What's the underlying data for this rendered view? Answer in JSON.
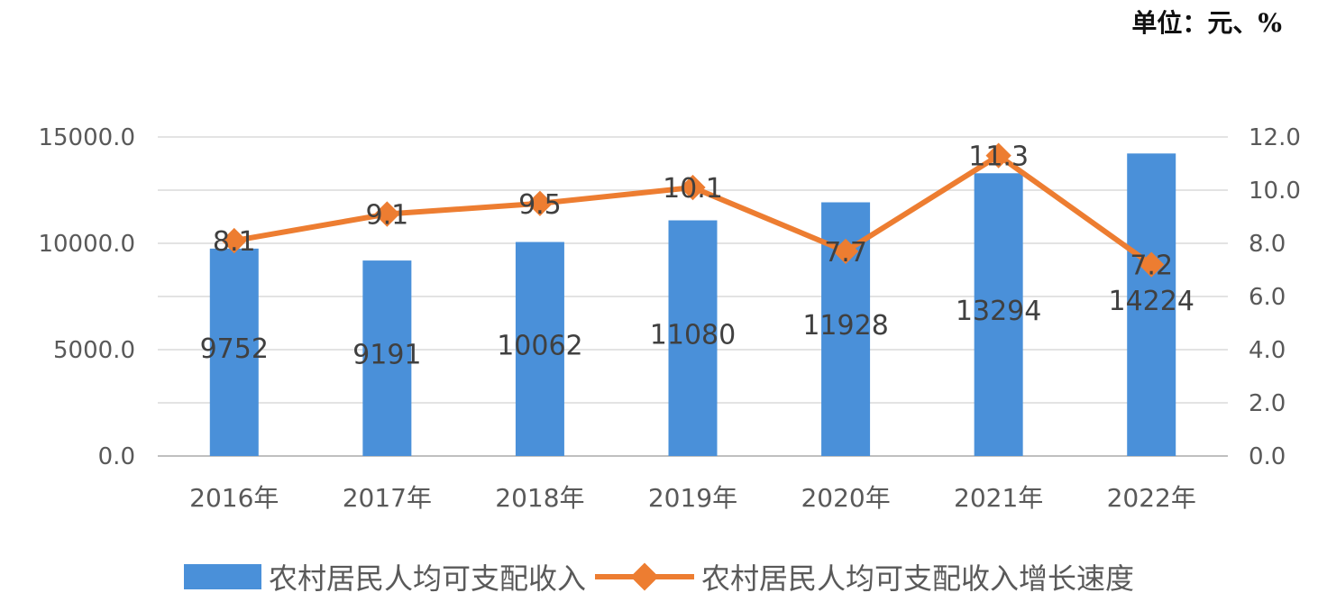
{
  "unit_label": "单位：元、%",
  "chart_data": {
    "type": "bar",
    "categories": [
      "2016年",
      "2017年",
      "2018年",
      "2019年",
      "2020年",
      "2021年",
      "2022年"
    ],
    "series": [
      {
        "name": "农村居民人均可支配收入",
        "type": "bar",
        "axis": "left",
        "values": [
          9752,
          9191,
          10062,
          11080,
          11928,
          13294,
          14224
        ],
        "labels": [
          "9752",
          "9191",
          "10062",
          "11080",
          "11928",
          "13294",
          "14224"
        ],
        "color": "#4a90d9"
      },
      {
        "name": "农村居民人均可支配收入增长速度",
        "type": "line",
        "axis": "right",
        "values": [
          8.1,
          9.1,
          9.5,
          10.1,
          7.7,
          11.3,
          7.2
        ],
        "labels": [
          "8.1",
          "9.1",
          "9.5",
          "10.1",
          "7.7",
          "11.3",
          "7.2"
        ],
        "color": "#ed7d31"
      }
    ],
    "left_axis": {
      "min": 0,
      "max": 15000,
      "ticks": [
        "0.0",
        "5000.0",
        "10000.0",
        "15000.0"
      ]
    },
    "right_axis": {
      "min": 0,
      "max": 12,
      "ticks": [
        "0.0",
        "2.0",
        "4.0",
        "6.0",
        "8.0",
        "10.0",
        "12.0"
      ]
    },
    "grid": true,
    "legend_position": "bottom"
  }
}
